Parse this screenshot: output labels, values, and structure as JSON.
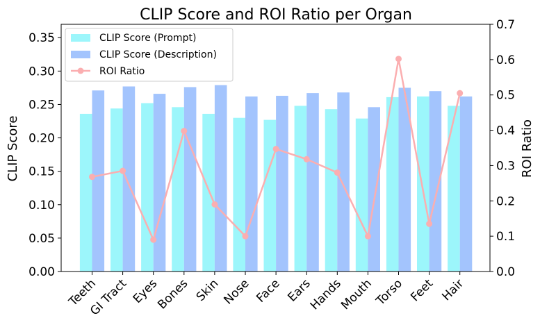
{
  "chart_data": {
    "type": "bar",
    "title": "CLIP Score and ROI Ratio per Organ",
    "xlabel": "",
    "ylabel": "CLIP Score",
    "y2label": "ROI Ratio",
    "ylim": [
      0,
      0.37
    ],
    "y2lim": [
      0,
      0.7
    ],
    "yticks": [
      "0.00",
      "0.05",
      "0.10",
      "0.15",
      "0.20",
      "0.25",
      "0.30",
      "0.35"
    ],
    "y2ticks": [
      "0.0",
      "0.1",
      "0.2",
      "0.3",
      "0.4",
      "0.5",
      "0.6",
      "0.7"
    ],
    "grid": false,
    "legend_position": "top-left",
    "categories": [
      "Teeth",
      "GI Tract",
      "Eyes",
      "Bones",
      "Skin",
      "Nose",
      "Face",
      "Ears",
      "Hands",
      "Mouth",
      "Torso",
      "Feet",
      "Hair"
    ],
    "series": [
      {
        "name": "CLIP Score (Prompt)",
        "type": "bar",
        "axis": "left",
        "color": "#9cf6fb",
        "values": [
          0.236,
          0.244,
          0.252,
          0.246,
          0.236,
          0.23,
          0.227,
          0.248,
          0.243,
          0.229,
          0.261,
          0.262,
          0.248
        ]
      },
      {
        "name": "CLIP Score (Description)",
        "type": "bar",
        "axis": "left",
        "color": "#a3c4fd",
        "values": [
          0.271,
          0.277,
          0.266,
          0.276,
          0.279,
          0.262,
          0.263,
          0.267,
          0.268,
          0.246,
          0.275,
          0.27,
          0.262
        ]
      },
      {
        "name": "ROI Ratio",
        "type": "line",
        "axis": "right",
        "color": "#fbaeb0",
        "values": [
          0.268,
          0.285,
          0.09,
          0.398,
          0.19,
          0.1,
          0.347,
          0.318,
          0.28,
          0.1,
          0.602,
          0.135,
          0.505
        ]
      }
    ]
  }
}
